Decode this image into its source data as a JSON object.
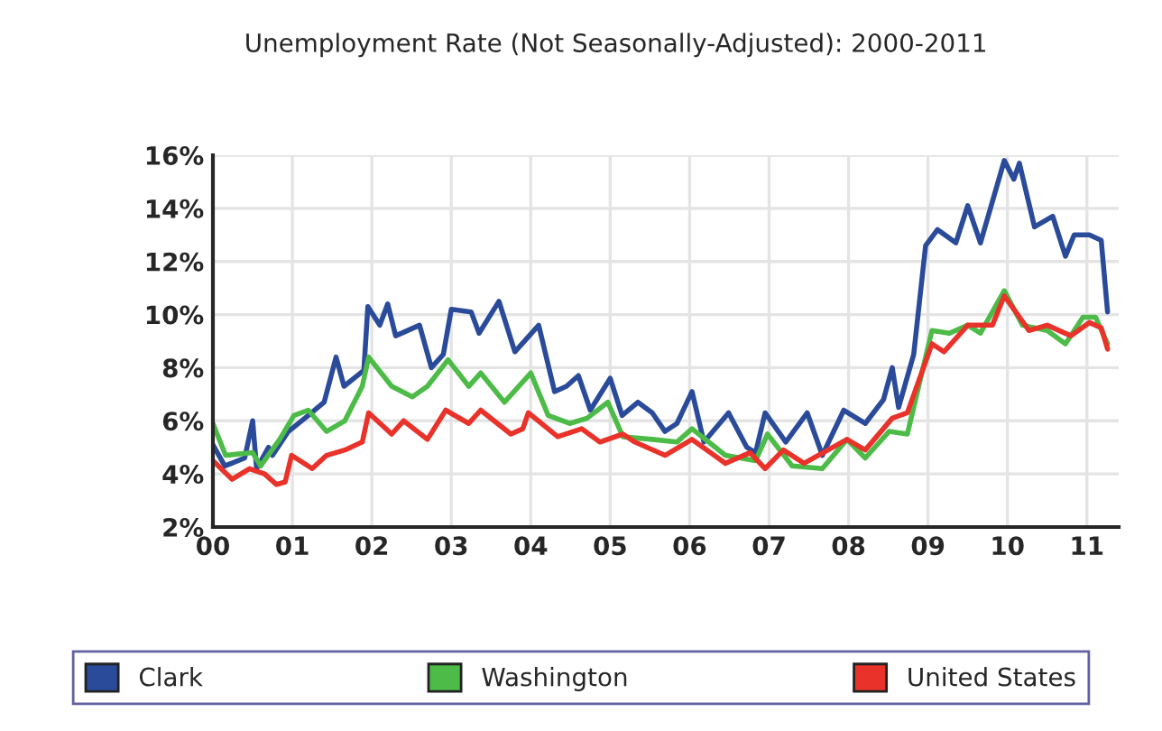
{
  "chart_data": {
    "type": "line",
    "title": "Unemployment Rate (Not Seasonally-Adjusted): 2000-2011",
    "xlim": [
      0,
      11.4
    ],
    "xticks": [
      {
        "value": 0,
        "label": "00"
      },
      {
        "value": 1,
        "label": "01"
      },
      {
        "value": 2,
        "label": "02"
      },
      {
        "value": 3,
        "label": "03"
      },
      {
        "value": 4,
        "label": "04"
      },
      {
        "value": 5,
        "label": "05"
      },
      {
        "value": 6,
        "label": "06"
      },
      {
        "value": 7,
        "label": "07"
      },
      {
        "value": 8,
        "label": "08"
      },
      {
        "value": 9,
        "label": "09"
      },
      {
        "value": 10,
        "label": "10"
      },
      {
        "value": 11,
        "label": "11"
      }
    ],
    "ylim": [
      2,
      16
    ],
    "yticks": [
      {
        "value": 2,
        "label": "2%"
      },
      {
        "value": 4,
        "label": "4%"
      },
      {
        "value": 6,
        "label": "6%"
      },
      {
        "value": 8,
        "label": "8%"
      },
      {
        "value": 10,
        "label": "10%"
      },
      {
        "value": 12,
        "label": "12%"
      },
      {
        "value": 14,
        "label": "14%"
      },
      {
        "value": 16,
        "label": "16%"
      }
    ],
    "grid": true,
    "legend": "bottom",
    "marker": "none",
    "line_style": "solid",
    "series": [
      {
        "name": "Clark",
        "color": "#2a4a9a",
        "x": [
          0,
          0.15,
          0.4,
          0.5,
          0.55,
          0.7,
          0.75,
          0.95,
          1.2,
          1.4,
          1.55,
          1.65,
          1.9,
          1.95,
          2.1,
          2.2,
          2.3,
          2.6,
          2.75,
          2.9,
          3.0,
          3.25,
          3.35,
          3.6,
          3.8,
          4.1,
          4.3,
          4.45,
          4.6,
          4.75,
          5.0,
          5.15,
          5.35,
          5.53,
          5.69,
          5.84,
          6.03,
          6.18,
          6.49,
          6.72,
          6.83,
          6.95,
          7.21,
          7.48,
          7.67,
          7.94,
          8.21,
          8.44,
          8.55,
          8.63,
          8.82,
          8.97,
          9.12,
          9.35,
          9.5,
          9.66,
          9.96,
          10.08,
          10.15,
          10.34,
          10.57,
          10.73,
          10.84,
          11.03,
          11.18,
          11.26
        ],
        "values": [
          5.1,
          4.3,
          4.6,
          6.0,
          4.2,
          5.0,
          4.7,
          5.6,
          6.2,
          6.7,
          8.4,
          7.3,
          7.9,
          10.3,
          9.6,
          10.4,
          9.2,
          9.6,
          8.0,
          8.5,
          10.2,
          10.1,
          9.3,
          10.5,
          8.6,
          9.6,
          7.1,
          7.3,
          7.7,
          6.4,
          7.6,
          6.2,
          6.7,
          6.3,
          5.6,
          5.9,
          7.1,
          5.2,
          6.3,
          5.0,
          4.8,
          6.3,
          5.2,
          6.3,
          4.7,
          6.4,
          5.9,
          6.8,
          8.0,
          6.5,
          8.5,
          12.6,
          13.2,
          12.7,
          14.1,
          12.7,
          15.8,
          15.1,
          15.7,
          13.3,
          13.7,
          12.2,
          13.0,
          13.0,
          12.8,
          10.1
        ]
      },
      {
        "name": "Washington",
        "color": "#4cbb47",
        "x": [
          0,
          0.16,
          0.5,
          0.6,
          0.84,
          1.02,
          1.2,
          1.43,
          1.66,
          1.88,
          1.96,
          2.25,
          2.51,
          2.7,
          2.96,
          3.22,
          3.37,
          3.67,
          4.0,
          4.22,
          4.49,
          4.71,
          4.97,
          5.16,
          5.53,
          5.84,
          6.03,
          6.45,
          6.83,
          6.98,
          7.29,
          7.67,
          7.98,
          8.21,
          8.51,
          8.74,
          9.05,
          9.27,
          9.5,
          9.66,
          9.96,
          10.19,
          10.5,
          10.73,
          10.95,
          11.11,
          11.26
        ],
        "values": [
          5.9,
          4.7,
          4.8,
          4.3,
          5.3,
          6.2,
          6.4,
          5.6,
          6.0,
          7.3,
          8.4,
          7.3,
          6.9,
          7.3,
          8.3,
          7.3,
          7.8,
          6.7,
          7.8,
          6.2,
          5.9,
          6.1,
          6.7,
          5.4,
          5.3,
          5.2,
          5.7,
          4.7,
          4.5,
          5.5,
          4.3,
          4.2,
          5.3,
          4.6,
          5.6,
          5.5,
          9.4,
          9.3,
          9.6,
          9.3,
          10.9,
          9.6,
          9.4,
          8.9,
          9.9,
          9.9,
          8.9
        ]
      },
      {
        "name": "United States",
        "color": "#e8322a",
        "x": [
          0,
          0.24,
          0.46,
          0.65,
          0.8,
          0.91,
          0.99,
          1.25,
          1.43,
          1.66,
          1.88,
          1.96,
          2.25,
          2.4,
          2.7,
          2.93,
          3.22,
          3.37,
          3.75,
          3.9,
          3.97,
          4.34,
          4.64,
          4.87,
          5.16,
          5.31,
          5.69,
          6.03,
          6.45,
          6.76,
          6.95,
          7.18,
          7.44,
          7.98,
          8.21,
          8.55,
          8.74,
          9.05,
          9.2,
          9.5,
          9.81,
          9.96,
          10.27,
          10.5,
          10.8,
          11.03,
          11.18,
          11.26
        ],
        "values": [
          4.5,
          3.8,
          4.2,
          4.0,
          3.6,
          3.7,
          4.7,
          4.2,
          4.7,
          4.9,
          5.2,
          6.3,
          5.5,
          6.0,
          5.3,
          6.4,
          5.9,
          6.4,
          5.5,
          5.7,
          6.3,
          5.4,
          5.7,
          5.2,
          5.5,
          5.2,
          4.7,
          5.3,
          4.4,
          4.8,
          4.2,
          4.9,
          4.4,
          5.3,
          4.9,
          6.1,
          6.3,
          8.9,
          8.6,
          9.6,
          9.6,
          10.7,
          9.4,
          9.6,
          9.2,
          9.7,
          9.5,
          8.7
        ]
      }
    ]
  }
}
